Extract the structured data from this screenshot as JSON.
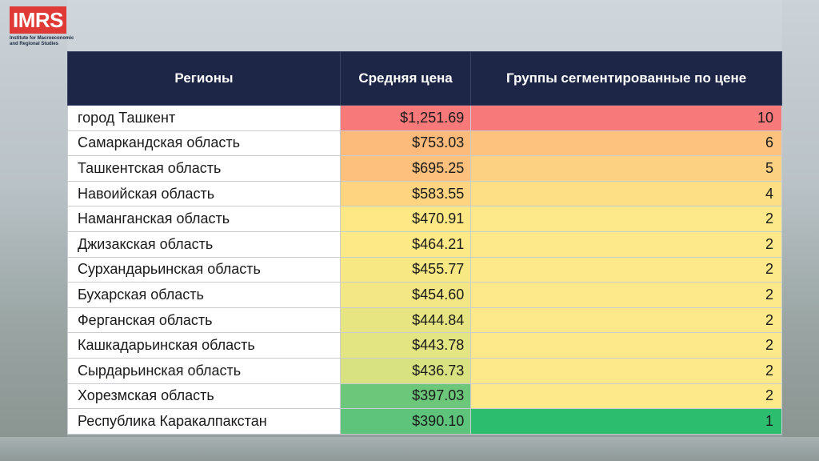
{
  "logo": {
    "mark": "IMRS",
    "subtitle": "Institute for Macroeconomic and Regional Studies"
  },
  "table": {
    "headers": [
      "Регионы",
      "Средняя цена",
      "Группы сегментированные по цене"
    ],
    "rows": [
      {
        "region": "город Ташкент",
        "price": "$1,251.69",
        "group": "10",
        "price_color": "#f7797a",
        "group_color": "#f7797a"
      },
      {
        "region": "Самаркандская область",
        "price": "$753.03",
        "group": "6",
        "price_color": "#fdbb7b",
        "group_color": "#fdc27e"
      },
      {
        "region": "Ташкентская область",
        "price": "$695.25",
        "group": "5",
        "price_color": "#fdc17d",
        "group_color": "#fdd182"
      },
      {
        "region": "Навоийская область",
        "price": "$583.55",
        "group": "4",
        "price_color": "#fed480",
        "group_color": "#fde085"
      },
      {
        "region": "Наманганская область",
        "price": "$470.91",
        "group": "2",
        "price_color": "#fee886",
        "group_color": "#fde88a"
      },
      {
        "region": "Джизакская область",
        "price": "$464.21",
        "group": "2",
        "price_color": "#fde986",
        "group_color": "#fde88a"
      },
      {
        "region": "Сурхандарьинская область",
        "price": "$455.77",
        "group": "2",
        "price_color": "#f7e884",
        "group_color": "#fde88a"
      },
      {
        "region": "Бухарская область",
        "price": "$454.60",
        "group": "2",
        "price_color": "#f2e784",
        "group_color": "#fde88a"
      },
      {
        "region": "Ферганская область",
        "price": "$444.84",
        "group": "2",
        "price_color": "#e7e582",
        "group_color": "#fde88a"
      },
      {
        "region": "Кашкадарьинская область",
        "price": "$443.78",
        "group": "2",
        "price_color": "#e3e482",
        "group_color": "#fde88a"
      },
      {
        "region": "Сырдарьинская область",
        "price": "$436.73",
        "group": "2",
        "price_color": "#d9e281",
        "group_color": "#fde88a"
      },
      {
        "region": "Хорезмская область",
        "price": "$397.03",
        "group": "2",
        "price_color": "#6cc77a",
        "group_color": "#fde88a"
      },
      {
        "region": "Республика Каракалпакстан",
        "price": "$390.10",
        "group": "1",
        "price_color": "#5ec47b",
        "group_color": "#2dbd6e"
      }
    ]
  },
  "colors": {
    "header_bg": "#1e2647",
    "logo_red": "#e03a36"
  }
}
